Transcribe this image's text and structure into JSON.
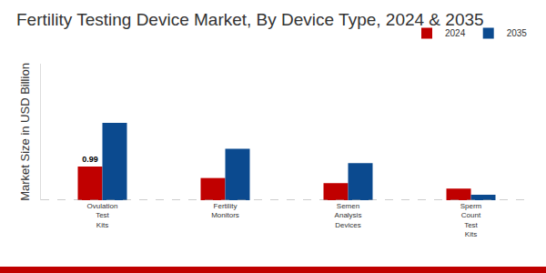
{
  "chart_data": {
    "type": "bar",
    "title": "Fertility Testing Device Market, By Device Type, 2024 & 2035",
    "y_label": "Market Size in USD Billion",
    "categories": [
      "Ovulation Test Kits",
      "Fertility Monitors",
      "Semen Analysis Devices",
      "Sperm Count Test Kits"
    ],
    "series": [
      {
        "name": "2024",
        "color": "#c00000",
        "values": [
          0.99,
          0.65,
          0.5,
          0.34
        ],
        "value_labels": [
          "0.99",
          null,
          null,
          null
        ]
      },
      {
        "name": "2035",
        "color": "#0b4a8f",
        "values": [
          2.27,
          1.51,
          1.09,
          0.16
        ]
      }
    ],
    "ylim": [
      0,
      4
    ],
    "yticks": [],
    "grid": false,
    "legend": "top right",
    "tick_labels": "x"
  }
}
